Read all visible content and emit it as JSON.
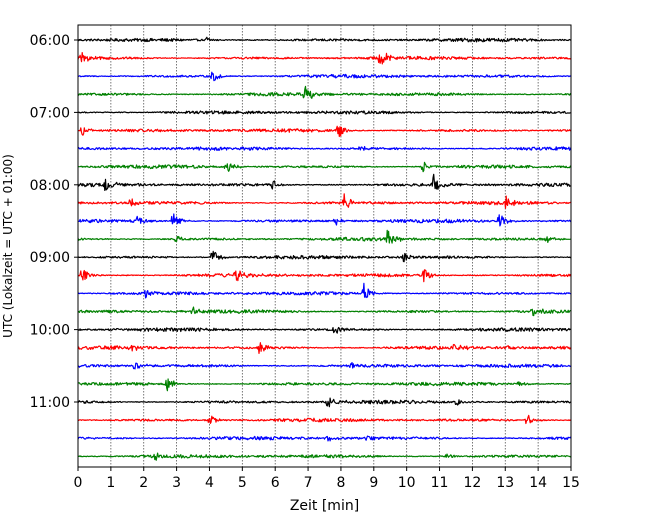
{
  "chart_data": {
    "type": "line",
    "xlabel": "Zeit  [min]",
    "ylabel": "UTC (Lokalzeit = UTC + 01:00)",
    "xlim": [
      0,
      15
    ],
    "x_ticks": [
      0,
      1,
      2,
      3,
      4,
      5,
      6,
      7,
      8,
      9,
      10,
      11,
      12,
      13,
      14,
      15
    ],
    "y_tick_labels": [
      "06:00",
      "07:00",
      "08:00",
      "09:00",
      "10:00",
      "11:00"
    ],
    "grid_x": true,
    "trace_interval_min": 15,
    "color_cycle": [
      "#000000",
      "#ff0000",
      "#0000ff",
      "#008000"
    ],
    "traces": [
      {
        "start": "06:00",
        "events": [
          {
            "t": 3.9,
            "amp": 0.4
          }
        ]
      },
      {
        "start": "06:15",
        "events": [
          {
            "t": 0.1,
            "amp": 0.7
          },
          {
            "t": 9.2,
            "amp": 1.2
          }
        ]
      },
      {
        "start": "06:30",
        "events": [
          {
            "t": 4.1,
            "amp": 0.8
          }
        ]
      },
      {
        "start": "06:45",
        "events": [
          {
            "t": 6.9,
            "amp": 1.1
          }
        ]
      },
      {
        "start": "07:00",
        "events": []
      },
      {
        "start": "07:15",
        "events": [
          {
            "t": 0.1,
            "amp": 0.7
          },
          {
            "t": 7.9,
            "amp": 1.0
          }
        ]
      },
      {
        "start": "07:30",
        "events": [
          {
            "t": 8.6,
            "amp": 0.3
          }
        ]
      },
      {
        "start": "07:45",
        "events": [
          {
            "t": 4.5,
            "amp": 1.0
          },
          {
            "t": 10.5,
            "amp": 0.6
          }
        ]
      },
      {
        "start": "08:00",
        "events": [
          {
            "t": 0.8,
            "amp": 1.1
          },
          {
            "t": 5.9,
            "amp": 0.6
          },
          {
            "t": 10.8,
            "amp": 1.2
          }
        ]
      },
      {
        "start": "08:15",
        "events": [
          {
            "t": 1.6,
            "amp": 0.7
          },
          {
            "t": 8.1,
            "amp": 1.1
          },
          {
            "t": 13.0,
            "amp": 0.8
          }
        ]
      },
      {
        "start": "08:30",
        "events": [
          {
            "t": 1.8,
            "amp": 0.6
          },
          {
            "t": 2.9,
            "amp": 1.0
          },
          {
            "t": 7.8,
            "amp": 0.7
          },
          {
            "t": 12.8,
            "amp": 1.0
          }
        ]
      },
      {
        "start": "08:45",
        "events": [
          {
            "t": 3.0,
            "amp": 0.5
          },
          {
            "t": 9.4,
            "amp": 1.1
          },
          {
            "t": 14.2,
            "amp": 0.7
          }
        ]
      },
      {
        "start": "09:00",
        "events": [
          {
            "t": 4.1,
            "amp": 1.1
          },
          {
            "t": 9.9,
            "amp": 0.7
          }
        ]
      },
      {
        "start": "09:15",
        "events": [
          {
            "t": 0.1,
            "amp": 1.1
          },
          {
            "t": 4.8,
            "amp": 0.8
          },
          {
            "t": 10.5,
            "amp": 1.1
          }
        ]
      },
      {
        "start": "09:30",
        "events": [
          {
            "t": 2.0,
            "amp": 0.6
          },
          {
            "t": 8.7,
            "amp": 1.1
          }
        ]
      },
      {
        "start": "09:45",
        "events": [
          {
            "t": 3.5,
            "amp": 0.6
          },
          {
            "t": 13.8,
            "amp": 1.1
          }
        ]
      },
      {
        "start": "10:00",
        "events": [
          {
            "t": 7.8,
            "amp": 0.6
          }
        ]
      },
      {
        "start": "10:15",
        "events": [
          {
            "t": 1.6,
            "amp": 0.4
          },
          {
            "t": 5.5,
            "amp": 0.9
          },
          {
            "t": 11.4,
            "amp": 0.7
          },
          {
            "t": 13.1,
            "amp": 0.4
          }
        ]
      },
      {
        "start": "10:30",
        "events": [
          {
            "t": 1.7,
            "amp": 0.9
          },
          {
            "t": 8.3,
            "amp": 0.5
          }
        ]
      },
      {
        "start": "10:45",
        "events": [
          {
            "t": 2.7,
            "amp": 0.9
          },
          {
            "t": 13.4,
            "amp": 0.6
          }
        ]
      },
      {
        "start": "11:00",
        "events": [
          {
            "t": 7.6,
            "amp": 1.1
          },
          {
            "t": 11.5,
            "amp": 0.5
          }
        ]
      },
      {
        "start": "11:15",
        "events": [
          {
            "t": 4.0,
            "amp": 0.6
          },
          {
            "t": 13.6,
            "amp": 1.0
          }
        ]
      },
      {
        "start": "11:30",
        "events": [
          {
            "t": 7.6,
            "amp": 0.5
          },
          {
            "t": 8.8,
            "amp": 0.4
          }
        ]
      },
      {
        "start": "11:45",
        "events": [
          {
            "t": 2.3,
            "amp": 0.8
          },
          {
            "t": 11.2,
            "amp": 0.4
          }
        ]
      }
    ]
  }
}
